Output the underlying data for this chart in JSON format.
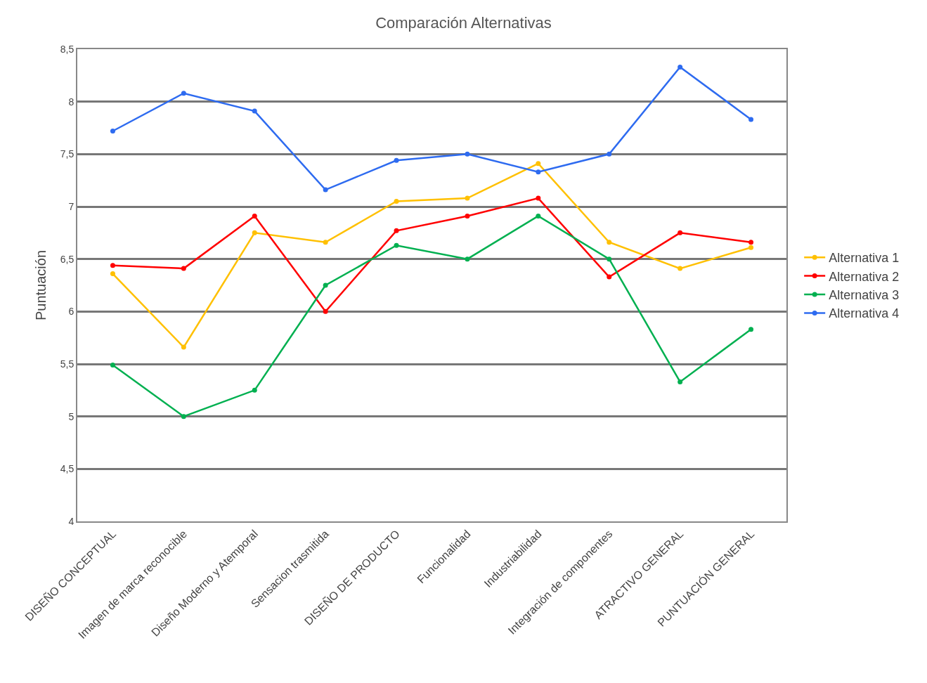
{
  "chart_data": {
    "type": "line",
    "title": "Comparación Alternativas",
    "ylabel": "Puntuación",
    "categories": [
      "DISEÑO CONCEPTUAL",
      "Imagen de marca reconocible",
      "Diseño Moderno y Atemporal",
      "Sensacion trasmitida",
      "DISEÑO DE PRODUCTO",
      "Funcionalidad",
      "Industriabilidad",
      "Integración de componentes",
      "ATRACTIVO GENERAL",
      "PUNTUACIÓN GENERAL"
    ],
    "series": [
      {
        "name": "Alternativa 1",
        "color": "#ffc000",
        "values": [
          6.36,
          5.66,
          6.75,
          6.66,
          7.05,
          7.08,
          7.41,
          6.66,
          6.41,
          6.61
        ]
      },
      {
        "name": "Alternativa 2",
        "color": "#ff0000",
        "values": [
          6.44,
          6.41,
          6.91,
          6.0,
          6.77,
          6.91,
          7.08,
          6.33,
          6.75,
          6.66
        ]
      },
      {
        "name": "Alternativa 3",
        "color": "#00b050",
        "values": [
          5.49,
          5.0,
          5.25,
          6.25,
          6.63,
          6.5,
          6.91,
          6.5,
          5.33,
          5.83
        ]
      },
      {
        "name": "Alternativa 4",
        "color": "#2e6bf0",
        "values": [
          7.72,
          8.08,
          7.91,
          7.16,
          7.44,
          7.5,
          7.33,
          7.5,
          8.33,
          7.83
        ]
      }
    ],
    "ylim": [
      4,
      8.5
    ],
    "yticks": [
      4,
      {
        "value": 4.5,
        "label": "4,5"
      },
      5,
      {
        "value": 5.5,
        "label": "5,5"
      },
      6,
      {
        "value": 6.5,
        "label": "6,5"
      },
      7,
      {
        "value": 7.5,
        "label": "7,5"
      },
      8,
      {
        "value": 8.5,
        "label": "8,5"
      }
    ],
    "grid": "y",
    "legend": "right",
    "marker": "circle",
    "line_style": "solid"
  }
}
